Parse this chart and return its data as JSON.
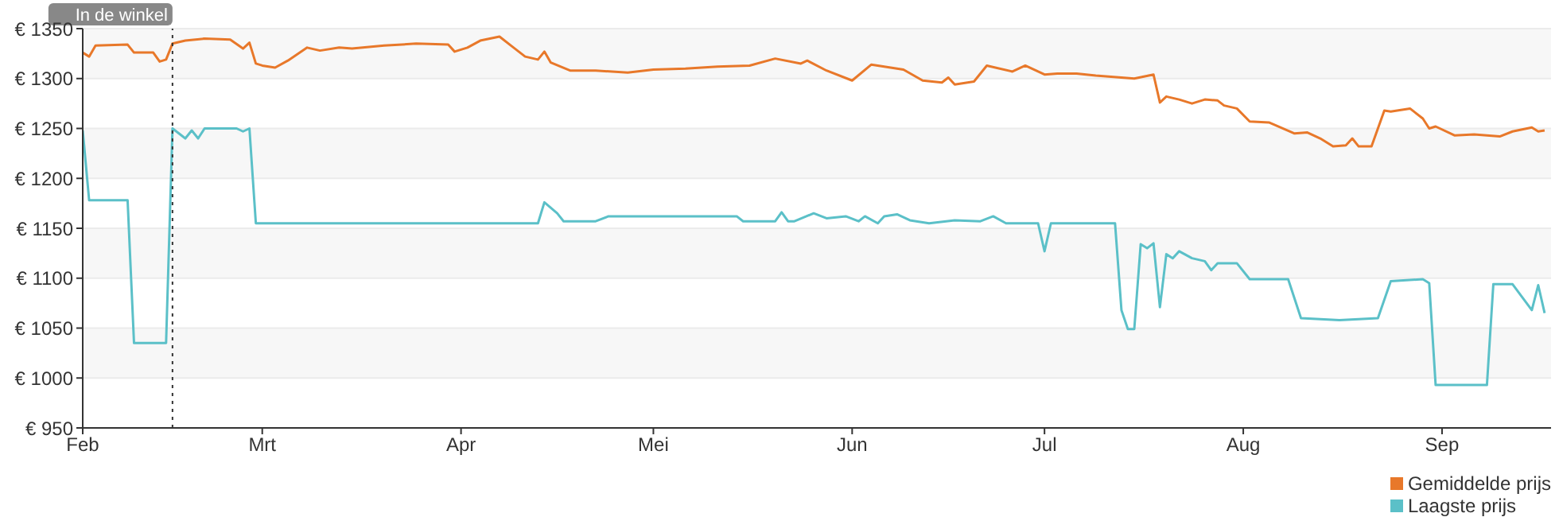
{
  "chart_data": {
    "type": "line",
    "xlim": [
      "--02-01",
      "--09-18"
    ],
    "xticks": [
      {
        "value": "--02-01",
        "label": "Feb"
      },
      {
        "value": "--03-01",
        "label": "Mrt"
      },
      {
        "value": "--04-01",
        "label": "Apr"
      },
      {
        "value": "--05-01",
        "label": "Mei"
      },
      {
        "value": "--06-01",
        "label": "Jun"
      },
      {
        "value": "--07-01",
        "label": "Jul"
      },
      {
        "value": "--08-01",
        "label": "Aug"
      },
      {
        "value": "--09-01",
        "label": "Sep"
      }
    ],
    "ylim": [
      950,
      1350
    ],
    "yticks": [
      {
        "value": 950,
        "label": "€ 950"
      },
      {
        "value": 1000,
        "label": "€ 1000"
      },
      {
        "value": 1050,
        "label": "€ 1050"
      },
      {
        "value": 1100,
        "label": "€ 1100"
      },
      {
        "value": 1150,
        "label": "€ 1150"
      },
      {
        "value": 1200,
        "label": "€ 1200"
      },
      {
        "value": 1250,
        "label": "€ 1250"
      },
      {
        "value": 1300,
        "label": "€ 1300"
      },
      {
        "value": 1350,
        "label": "€ 1350"
      }
    ],
    "grid": "y",
    "legend": "bottom right",
    "marker": "none",
    "line_style": "solid",
    "ref_lines": [
      {
        "axis": "x",
        "value": "--02-15",
        "label": "In de winkel",
        "color": "#333333",
        "line_style": "dotted"
      }
    ],
    "series": [
      {
        "name": "Gemiddelde prijs",
        "color": "#e8782a",
        "x": [
          "--02-01",
          "--02-02",
          "--02-03",
          "--02-08",
          "--02-09",
          "--02-12",
          "--02-13",
          "--02-14",
          "--02-15",
          "--02-17",
          "--02-20",
          "--02-24",
          "--02-26",
          "--02-27",
          "--02-28",
          "--03-01",
          "--03-03",
          "--03-05",
          "--03-08",
          "--03-10",
          "--03-13",
          "--03-15",
          "--03-20",
          "--03-25",
          "--03-30",
          "--03-31",
          "--04-02",
          "--04-04",
          "--04-07",
          "--04-09",
          "--04-11",
          "--04-13",
          "--04-14",
          "--04-15",
          "--04-18",
          "--04-22",
          "--04-27",
          "--05-01",
          "--05-06",
          "--05-11",
          "--05-16",
          "--05-20",
          "--05-24",
          "--05-25",
          "--05-28",
          "--06-01",
          "--06-04",
          "--06-09",
          "--06-12",
          "--06-15",
          "--06-16",
          "--06-17",
          "--06-20",
          "--06-22",
          "--06-26",
          "--06-28",
          "--07-01",
          "--07-03",
          "--07-06",
          "--07-09",
          "--07-15",
          "--07-18",
          "--07-19",
          "--07-20",
          "--07-22",
          "--07-24",
          "--07-26",
          "--07-28",
          "--07-29",
          "--07-31",
          "--08-02",
          "--08-05",
          "--08-09",
          "--08-11",
          "--08-13",
          "--08-15",
          "--08-17",
          "--08-18",
          "--08-19",
          "--08-21",
          "--08-23",
          "--08-24",
          "--08-27",
          "--08-29",
          "--08-30",
          "--08-31",
          "--09-03",
          "--09-06",
          "--09-10",
          "--09-12",
          "--09-15",
          "--09-16",
          "--09-17"
        ],
        "values": [
          1326,
          1322,
          1333,
          1334,
          1326,
          1326,
          1317,
          1319,
          1335,
          1338,
          1340,
          1339,
          1330,
          1336,
          1315,
          1313,
          1311,
          1318,
          1331,
          1328,
          1331,
          1330,
          1333,
          1335,
          1334,
          1327,
          1331,
          1338,
          1342,
          1332,
          1322,
          1319,
          1327,
          1316,
          1308,
          1308,
          1306,
          1309,
          1310,
          1312,
          1313,
          1320,
          1315,
          1318,
          1308,
          1298,
          1314,
          1309,
          1298,
          1296,
          1301,
          1294,
          1297,
          1313,
          1307,
          1313,
          1304,
          1305,
          1305,
          1303,
          1300,
          1304,
          1276,
          1282,
          1279,
          1275,
          1279,
          1278,
          1273,
          1270,
          1257,
          1256,
          1245,
          1246,
          1240,
          1232,
          1233,
          1240,
          1232,
          1232,
          1268,
          1267,
          1270,
          1260,
          1250,
          1252,
          1243,
          1244,
          1242,
          1247,
          1251,
          1247,
          1248
        ]
      },
      {
        "name": "Laagste prijs",
        "color": "#5bc0c8",
        "x": [
          "--02-01",
          "--02-02",
          "--02-08",
          "--02-09",
          "--02-14",
          "--02-15",
          "--02-17",
          "--02-18",
          "--02-19",
          "--02-20",
          "--02-25",
          "--02-26",
          "--02-27",
          "--02-28",
          "--04-13",
          "--04-14",
          "--04-16",
          "--04-17",
          "--04-22",
          "--04-24",
          "--05-14",
          "--05-15",
          "--05-20",
          "--05-21",
          "--05-22",
          "--05-23",
          "--05-26",
          "--05-28",
          "--05-31",
          "--06-02",
          "--06-03",
          "--06-05",
          "--06-06",
          "--06-08",
          "--06-10",
          "--06-13",
          "--06-17",
          "--06-21",
          "--06-23",
          "--06-25",
          "--06-30",
          "--07-01",
          "--07-02",
          "--07-12",
          "--07-13",
          "--07-14",
          "--07-15",
          "--07-16",
          "--07-17",
          "--07-18",
          "--07-19",
          "--07-20",
          "--07-21",
          "--07-22",
          "--07-24",
          "--07-26",
          "--07-27",
          "--07-28",
          "--07-31",
          "--08-02",
          "--08-08",
          "--08-10",
          "--08-16",
          "--08-22",
          "--08-24",
          "--08-29",
          "--08-30",
          "--08-31",
          "--09-08",
          "--09-09",
          "--09-12",
          "--09-15",
          "--09-16",
          "--09-17"
        ],
        "values": [
          1248,
          1178,
          1178,
          1035,
          1035,
          1250,
          1240,
          1248,
          1240,
          1250,
          1250,
          1247,
          1250,
          1155,
          1155,
          1176,
          1165,
          1157,
          1157,
          1162,
          1162,
          1157,
          1157,
          1166,
          1157,
          1157,
          1165,
          1160,
          1162,
          1157,
          1162,
          1155,
          1162,
          1164,
          1158,
          1155,
          1158,
          1157,
          1162,
          1155,
          1155,
          1127,
          1155,
          1155,
          1068,
          1049,
          1049,
          1134,
          1130,
          1135,
          1071,
          1124,
          1120,
          1127,
          1120,
          1117,
          1108,
          1115,
          1115,
          1099,
          1099,
          1060,
          1058,
          1060,
          1097,
          1099,
          1095,
          993,
          993,
          1094,
          1094,
          1068,
          1093,
          1065
        ]
      }
    ]
  }
}
